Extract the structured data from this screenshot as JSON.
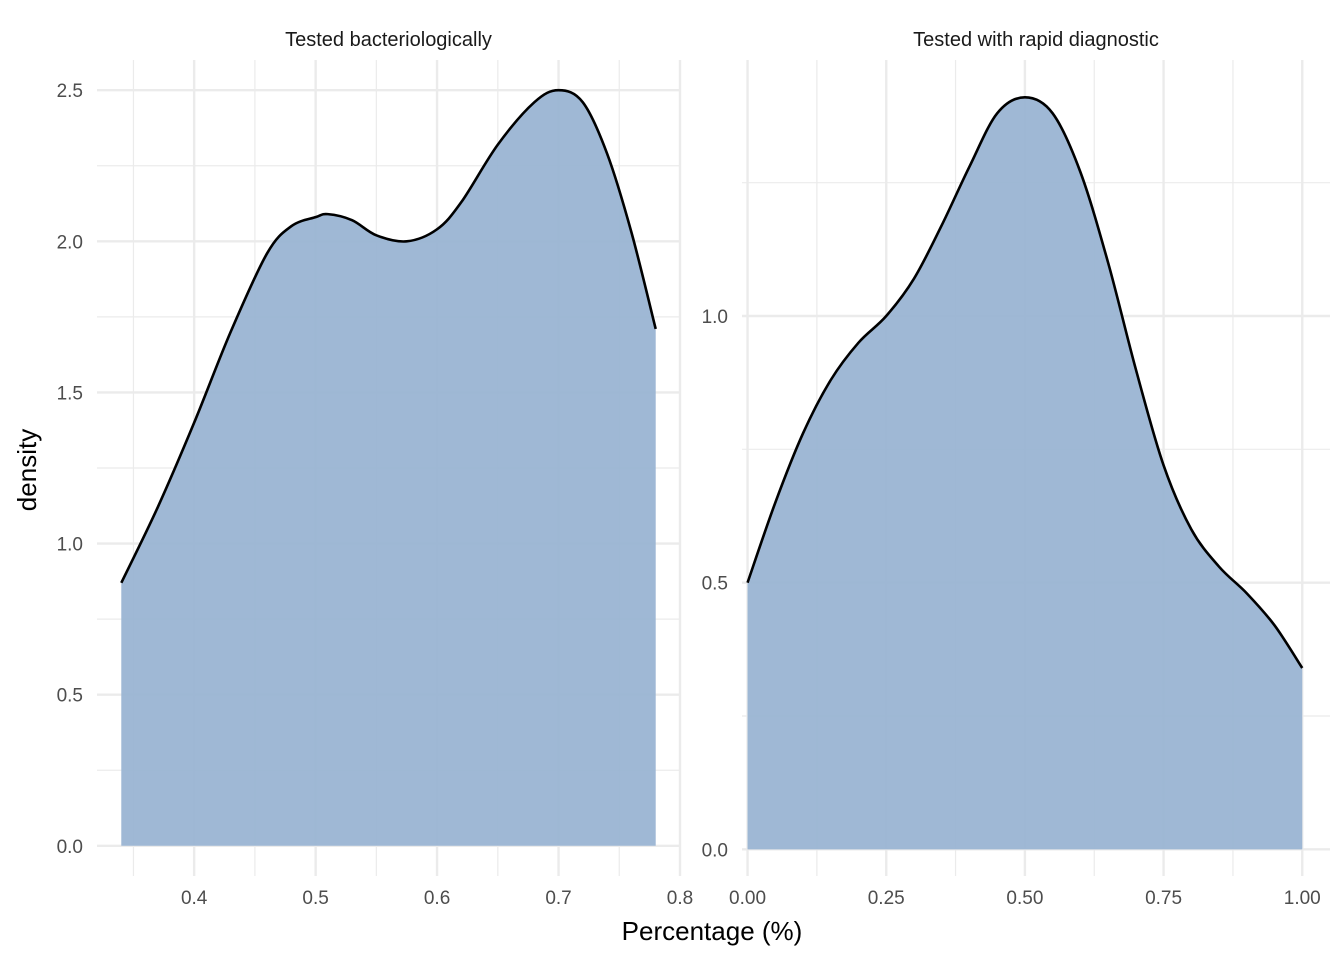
{
  "chart_data": {
    "type": "area",
    "xlabel": "Percentage (%)",
    "ylabel": "density",
    "fill_color": "#9ab4d3",
    "line_color": "#000000",
    "grid_color": "#ebebeb",
    "background": "#ffffff",
    "panels": [
      {
        "title": "Tested bacteriologically",
        "xlim": [
          0.32,
          0.8
        ],
        "ylim": [
          -0.1,
          2.6
        ],
        "x_ticks": [
          0.4,
          0.5,
          0.6,
          0.7,
          0.8
        ],
        "x_tick_labels": [
          "0.4",
          "0.5",
          "0.6",
          "0.7",
          "0.8"
        ],
        "y_ticks": [
          0.0,
          0.5,
          1.0,
          1.5,
          2.0,
          2.5
        ],
        "y_tick_labels": [
          "0.0",
          "0.5",
          "1.0",
          "1.5",
          "2.0",
          "2.5"
        ],
        "x": [
          0.34,
          0.37,
          0.4,
          0.43,
          0.46,
          0.48,
          0.5,
          0.51,
          0.53,
          0.55,
          0.575,
          0.6,
          0.62,
          0.65,
          0.68,
          0.7,
          0.72,
          0.74,
          0.76,
          0.78
        ],
        "y": [
          0.87,
          1.12,
          1.4,
          1.7,
          1.96,
          2.05,
          2.08,
          2.09,
          2.07,
          2.02,
          2.0,
          2.04,
          2.13,
          2.32,
          2.46,
          2.5,
          2.46,
          2.29,
          2.03,
          1.71
        ]
      },
      {
        "title": "Tested with rapid diagnostic",
        "xlim": [
          -0.01,
          1.05
        ],
        "ylim": [
          -0.05,
          1.48
        ],
        "x_ticks": [
          0.0,
          0.25,
          0.5,
          0.75,
          1.0
        ],
        "x_tick_labels": [
          "0.00",
          "0.25",
          "0.50",
          "0.75",
          "1.00"
        ],
        "y_ticks": [
          0.0,
          0.5,
          1.0
        ],
        "y_tick_labels": [
          "0.0",
          "0.5",
          "1.0"
        ],
        "x": [
          0.0,
          0.05,
          0.1,
          0.15,
          0.2,
          0.25,
          0.3,
          0.35,
          0.4,
          0.45,
          0.5,
          0.55,
          0.6,
          0.65,
          0.7,
          0.75,
          0.8,
          0.85,
          0.9,
          0.95,
          1.0
        ],
        "y": [
          0.5,
          0.65,
          0.78,
          0.88,
          0.95,
          1.0,
          1.07,
          1.17,
          1.28,
          1.38,
          1.41,
          1.38,
          1.27,
          1.1,
          0.9,
          0.72,
          0.6,
          0.53,
          0.48,
          0.42,
          0.34
        ]
      }
    ]
  }
}
